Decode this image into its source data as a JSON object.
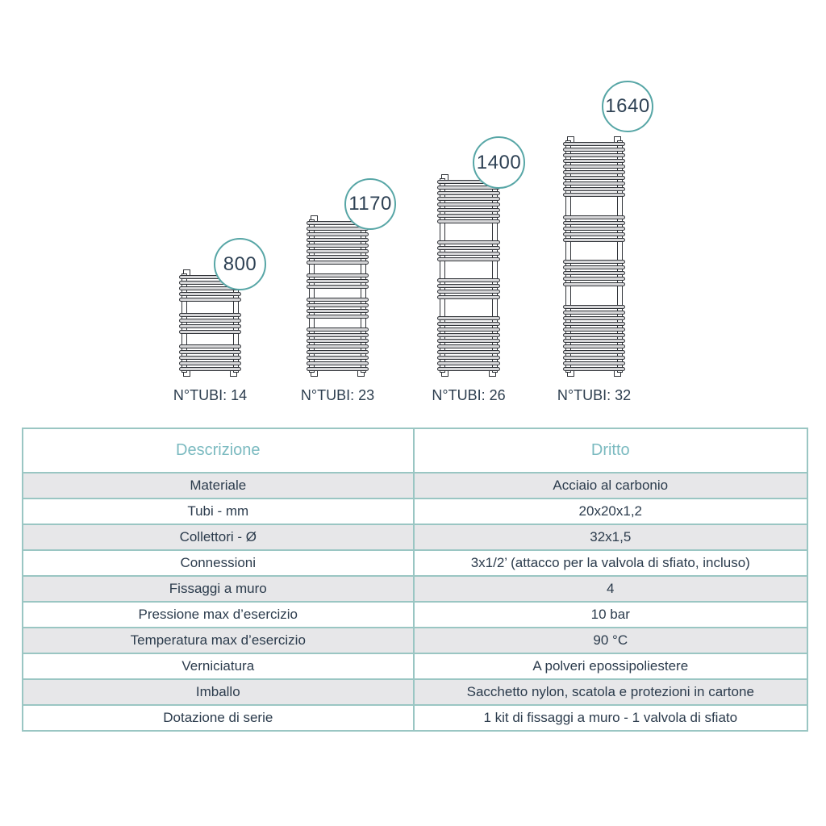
{
  "colors": {
    "badge_ring_teal": "#57a6a6",
    "table_border_teal": "#9ac6c3",
    "table_header_teal": "#7bbac0",
    "text_dark_navy": "#2b3b4c",
    "row_alt_gray": "#e7e7e9",
    "tube_fill_gray": "#d5d5d7",
    "tube_outline": "#303338"
  },
  "diagram": {
    "radiators": [
      {
        "height": "800",
        "tubes_label": "N°TUBI: 14",
        "tube_groups": [
          5,
          4,
          5
        ]
      },
      {
        "height": "1170",
        "tubes_label": "N°TUBI: 23",
        "tube_groups": [
          8,
          3,
          4,
          8
        ]
      },
      {
        "height": "1400",
        "tubes_label": "N°TUBI: 26",
        "tube_groups": [
          8,
          4,
          4,
          10
        ]
      },
      {
        "height": "1640",
        "tubes_label": "N°TUBI: 32",
        "tube_groups": [
          10,
          5,
          5,
          12
        ]
      }
    ]
  },
  "table": {
    "headers": [
      "Descrizione",
      "Dritto"
    ],
    "rows": [
      [
        "Materiale",
        "Acciaio al carbonio"
      ],
      [
        "Tubi - mm",
        "20x20x1,2"
      ],
      [
        "Collettori - Ø",
        "32x1,5"
      ],
      [
        "Connessioni",
        "3x1/2’ (attacco per la valvola di sfiato, incluso)"
      ],
      [
        "Fissaggi a muro",
        "4"
      ],
      [
        "Pressione max d’esercizio",
        "10 bar"
      ],
      [
        "Temperatura max d’esercizio",
        "90 °C"
      ],
      [
        "Verniciatura",
        "A polveri epossipoliestere"
      ],
      [
        "Imballo",
        "Sacchetto nylon, scatola e protezioni in cartone"
      ],
      [
        "Dotazione di serie",
        "1 kit di fissaggi a muro - 1 valvola di sfiato"
      ]
    ]
  }
}
